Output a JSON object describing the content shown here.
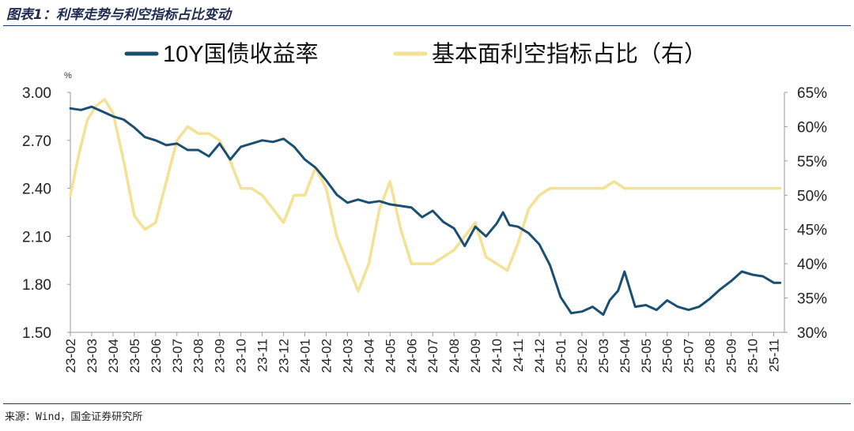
{
  "header": {
    "title": "图表1：利率走势与利空指标占比变动"
  },
  "footer": {
    "source": "来源：Wind，国金证券研究所"
  },
  "chart_data": {
    "type": "line",
    "title": "利率走势与利空指标占比变动",
    "left_axis_unit": "%",
    "left_axis": {
      "ylim": [
        1.5,
        3.0
      ],
      "ticks": [
        "3.00",
        "2.70",
        "2.40",
        "2.10",
        "1.80",
        "1.50"
      ],
      "tick_values": [
        3.0,
        2.7,
        2.4,
        2.1,
        1.8,
        1.5
      ]
    },
    "right_axis": {
      "ylim": [
        30,
        65
      ],
      "ticks": [
        "65%",
        "60%",
        "55%",
        "50%",
        "45%",
        "40%",
        "35%",
        "30%"
      ],
      "tick_values": [
        65,
        60,
        55,
        50,
        45,
        40,
        35,
        30
      ]
    },
    "x_range": [
      0,
      33.5
    ],
    "x_ticks": [
      "23-02",
      "23-03",
      "23-04",
      "23-05",
      "23-06",
      "23-07",
      "23-08",
      "23-09",
      "23-10",
      "23-11",
      "23-12",
      "24-01",
      "24-02",
      "24-03",
      "24-04",
      "24-05",
      "24-06",
      "24-07",
      "24-08",
      "24-09",
      "24-10",
      "24-11",
      "24-12",
      "25-01",
      "25-02",
      "25-03",
      "25-04",
      "25-05",
      "25-06",
      "25-07",
      "25-08",
      "25-09",
      "25-10",
      "25-11"
    ],
    "legend": {
      "placement": "top"
    },
    "series": [
      {
        "name": "10Y国债收益率",
        "axis": "left",
        "color": "#1b4f72",
        "x": [
          0,
          0.5,
          1,
          1.5,
          2,
          2.5,
          3,
          3.5,
          4,
          4.5,
          5,
          5.5,
          6,
          6.5,
          7,
          7.5,
          8,
          8.5,
          9,
          9.5,
          10,
          10.5,
          11,
          11.5,
          12,
          12.5,
          13,
          13.5,
          14,
          14.5,
          15,
          15.5,
          16,
          16.5,
          17,
          17.5,
          18,
          18.5,
          19,
          19.5,
          20,
          20.3,
          20.6,
          21,
          21.5,
          22,
          22.5,
          23,
          23.5,
          24,
          24.5,
          25,
          25.3,
          25.7,
          26,
          26.5,
          27,
          27.5,
          28,
          28.5,
          29,
          29.5,
          30,
          30.5,
          31,
          31.5,
          32,
          32.5,
          33,
          33.3
        ],
        "values": [
          2.9,
          2.89,
          2.91,
          2.88,
          2.85,
          2.83,
          2.78,
          2.72,
          2.7,
          2.67,
          2.68,
          2.64,
          2.64,
          2.6,
          2.68,
          2.58,
          2.66,
          2.68,
          2.7,
          2.69,
          2.71,
          2.66,
          2.58,
          2.53,
          2.45,
          2.36,
          2.31,
          2.33,
          2.31,
          2.32,
          2.3,
          2.29,
          2.28,
          2.22,
          2.26,
          2.19,
          2.15,
          2.04,
          2.16,
          2.1,
          2.18,
          2.25,
          2.17,
          2.16,
          2.12,
          2.05,
          1.92,
          1.72,
          1.62,
          1.63,
          1.66,
          1.61,
          1.7,
          1.76,
          1.88,
          1.66,
          1.67,
          1.64,
          1.7,
          1.66,
          1.64,
          1.66,
          1.71,
          1.77,
          1.82,
          1.88,
          1.86,
          1.85,
          1.81,
          1.81
        ]
      },
      {
        "name": "基本面利空指标占比（右）",
        "axis": "right",
        "color": "#f3e194",
        "x": [
          0,
          0.4,
          0.8,
          1.2,
          1.6,
          2,
          2.5,
          3,
          3.5,
          4,
          4.5,
          5,
          5.5,
          6,
          6.5,
          7,
          7.5,
          8,
          8.5,
          9,
          9.5,
          10,
          10.5,
          11,
          11.5,
          12,
          12.5,
          13,
          13.5,
          14,
          14.5,
          15,
          15.5,
          16,
          16.5,
          17,
          17.5,
          18,
          18.5,
          19,
          19.5,
          20,
          20.5,
          21,
          21.5,
          22,
          22.5,
          23,
          23.5,
          24,
          24.5,
          25,
          25.5,
          26,
          26.5,
          27,
          27.5,
          28,
          28.5,
          29,
          29.5,
          30,
          30.5,
          31,
          31.5,
          32,
          32.5,
          33,
          33.3
        ],
        "values": [
          50,
          56,
          61,
          63,
          64,
          62,
          55,
          47,
          45,
          46,
          52,
          58,
          60,
          59,
          59,
          58,
          55,
          51,
          51,
          50,
          48,
          46,
          50,
          50,
          54,
          51,
          44,
          40,
          36,
          40,
          48,
          52,
          45,
          40,
          40,
          40,
          41,
          42,
          44,
          46,
          41,
          40,
          39,
          43,
          48,
          50,
          51,
          51,
          51,
          51,
          51,
          51,
          52,
          51,
          51,
          51,
          51,
          51,
          51,
          51,
          51,
          51,
          51,
          51,
          51,
          51,
          51,
          51,
          51
        ]
      }
    ]
  }
}
